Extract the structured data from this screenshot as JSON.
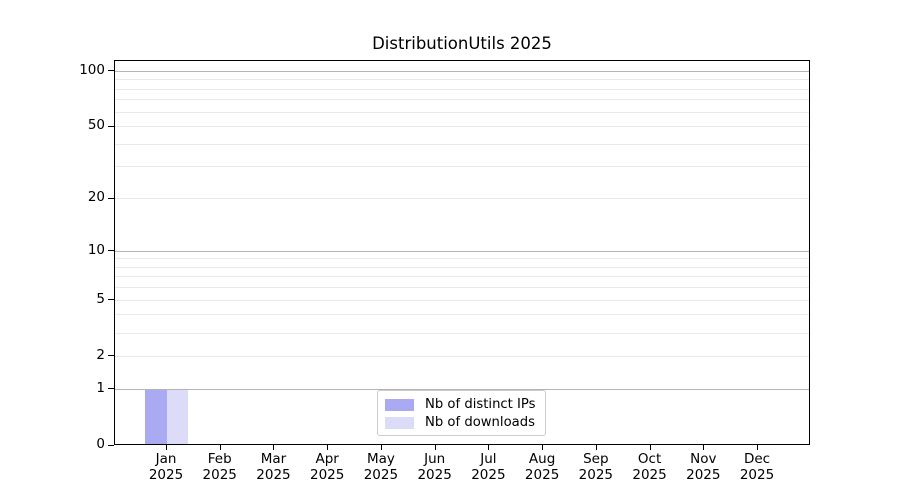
{
  "chart_data": {
    "type": "bar",
    "title": "DistributionUtils 2025",
    "x": {
      "categories": [
        "Jan",
        "Feb",
        "Mar",
        "Apr",
        "May",
        "Jun",
        "Jul",
        "Aug",
        "Sep",
        "Oct",
        "Nov",
        "Dec"
      ],
      "sub_label": "2025"
    },
    "y": {
      "scale": "log1p",
      "range": [
        0,
        100
      ],
      "labeled_ticks": [
        0,
        1,
        2,
        5,
        10,
        20,
        50,
        100
      ],
      "decade_gridlines": [
        1,
        10,
        100
      ],
      "light_gridlines": [
        2,
        3,
        4,
        6,
        7,
        8,
        9,
        5,
        20,
        30,
        40,
        50,
        60,
        70,
        80,
        90
      ],
      "grid": true
    },
    "series": [
      {
        "name": "Nb of distinct IPs",
        "color": "#aaaaf2",
        "values": [
          1,
          0,
          0,
          0,
          0,
          0,
          0,
          0,
          0,
          0,
          0,
          0
        ]
      },
      {
        "name": "Nb of downloads",
        "color": "#dcdcf8",
        "values": [
          1,
          0,
          0,
          0,
          0,
          0,
          0,
          0,
          0,
          0,
          0,
          0
        ]
      }
    ],
    "legend": {
      "position": "lower center"
    },
    "colors": {
      "grid_decade": "#b4b4b4",
      "grid_light": "#eaeaea",
      "axis": "#000000",
      "legend_border": "#cccccc",
      "text": "#000000"
    }
  }
}
